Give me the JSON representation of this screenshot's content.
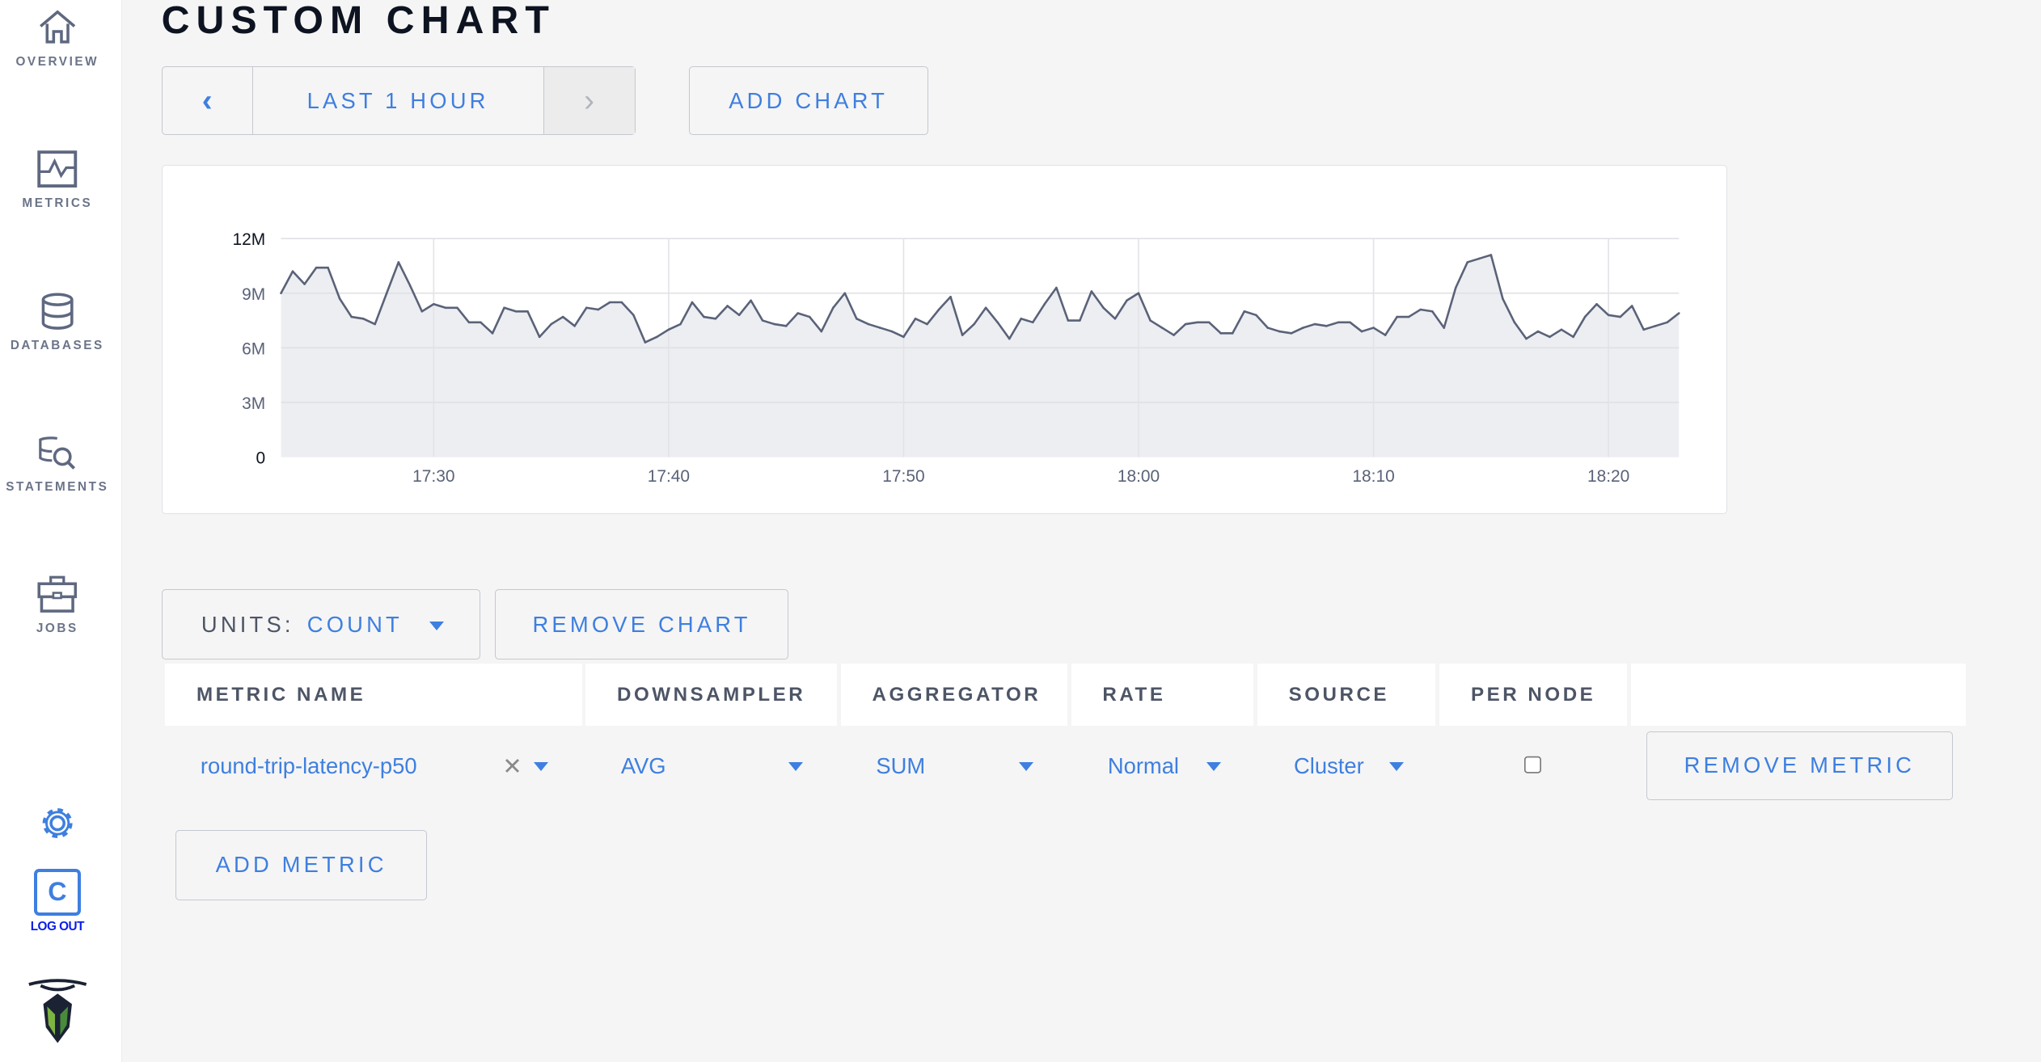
{
  "sidebar": {
    "items": [
      {
        "label": "OVERVIEW",
        "icon": "home-icon"
      },
      {
        "label": "METRICS",
        "icon": "metrics-icon"
      },
      {
        "label": "DATABASES",
        "icon": "database-icon"
      },
      {
        "label": "STATEMENTS",
        "icon": "statements-icon"
      },
      {
        "label": "JOBS",
        "icon": "jobs-icon"
      }
    ],
    "settings_icon": "gear-icon",
    "user_initial": "C",
    "logout_label": "LOG OUT"
  },
  "header": {
    "title": "CUSTOM CHART"
  },
  "time_range": {
    "label": "LAST 1 HOUR",
    "prev": "‹",
    "next": "›"
  },
  "add_chart_label": "ADD CHART",
  "units": {
    "label": "UNITS:",
    "value": "COUNT"
  },
  "remove_chart_label": "REMOVE CHART",
  "table": {
    "headers": [
      "METRIC NAME",
      "DOWNSAMPLER",
      "AGGREGATOR",
      "RATE",
      "SOURCE",
      "PER NODE"
    ],
    "rows": [
      {
        "metric": "round-trip-latency-p50",
        "downsampler": "AVG",
        "aggregator": "SUM",
        "rate": "Normal",
        "source": "Cluster",
        "per_node": false,
        "remove_label": "REMOVE METRIC"
      }
    ]
  },
  "add_metric_label": "ADD METRIC",
  "colors": {
    "accent": "#3e7fe0",
    "line": "#5a6278",
    "area": "#edeef2"
  },
  "chart_data": {
    "type": "area",
    "ylim": [
      0,
      12000000
    ],
    "y_ticks": [
      "0",
      "3M",
      "6M",
      "9M",
      "12M"
    ],
    "y_tick_values": [
      0,
      3,
      6,
      9,
      12
    ],
    "x_ticks": [
      "17:30",
      "17:40",
      "17:50",
      "18:00",
      "18:10",
      "18:20"
    ],
    "xlim": [
      "17:23:30",
      "18:23:00"
    ],
    "grid": true,
    "y_unit": "M",
    "x": [
      "17:23:30",
      "17:24:00",
      "17:24:30",
      "17:25:00",
      "17:25:30",
      "17:26:00",
      "17:26:30",
      "17:27:00",
      "17:27:30",
      "17:28:00",
      "17:28:30",
      "17:29:00",
      "17:29:30",
      "17:30:00",
      "17:30:30",
      "17:31:00",
      "17:31:30",
      "17:32:00",
      "17:32:30",
      "17:33:00",
      "17:33:30",
      "17:34:00",
      "17:34:30",
      "17:35:00",
      "17:35:30",
      "17:36:00",
      "17:36:30",
      "17:37:00",
      "17:37:30",
      "17:38:00",
      "17:38:30",
      "17:39:00",
      "17:39:30",
      "17:40:00",
      "17:40:30",
      "17:41:00",
      "17:41:30",
      "17:42:00",
      "17:42:30",
      "17:43:00",
      "17:43:30",
      "17:44:00",
      "17:44:30",
      "17:45:00",
      "17:45:30",
      "17:46:00",
      "17:46:30",
      "17:47:00",
      "17:47:30",
      "17:48:00",
      "17:48:30",
      "17:49:00",
      "17:49:30",
      "17:50:00",
      "17:50:30",
      "17:51:00",
      "17:51:30",
      "17:52:00",
      "17:52:30",
      "17:53:00",
      "17:53:30",
      "17:54:00",
      "17:54:30",
      "17:55:00",
      "17:55:30",
      "17:56:00",
      "17:56:30",
      "17:57:00",
      "17:57:30",
      "17:58:00",
      "17:58:30",
      "17:59:00",
      "17:59:30",
      "18:00:00",
      "18:00:30",
      "18:01:00",
      "18:01:30",
      "18:02:00",
      "18:02:30",
      "18:03:00",
      "18:03:30",
      "18:04:00",
      "18:04:30",
      "18:05:00",
      "18:05:30",
      "18:06:00",
      "18:06:30",
      "18:07:00",
      "18:07:30",
      "18:08:00",
      "18:08:30",
      "18:09:00",
      "18:09:30",
      "18:10:00",
      "18:10:30",
      "18:11:00",
      "18:11:30",
      "18:12:00",
      "18:12:30",
      "18:13:00",
      "18:13:30",
      "18:14:00",
      "18:14:30",
      "18:15:00",
      "18:15:30",
      "18:16:00",
      "18:16:30",
      "18:17:00",
      "18:17:30",
      "18:18:00",
      "18:18:30",
      "18:19:00",
      "18:19:30",
      "18:20:00",
      "18:20:30",
      "18:21:00",
      "18:21:30",
      "18:22:00",
      "18:22:30",
      "18:23:00"
    ],
    "values_millions": [
      9.0,
      10.2,
      9.5,
      10.4,
      10.4,
      8.7,
      7.7,
      7.6,
      7.3,
      9.0,
      10.7,
      9.4,
      8.0,
      8.4,
      8.2,
      8.2,
      7.4,
      7.4,
      6.8,
      8.2,
      8.0,
      8.0,
      6.6,
      7.3,
      7.7,
      7.2,
      8.2,
      8.1,
      8.5,
      8.5,
      7.8,
      6.3,
      6.6,
      7.0,
      7.3,
      8.5,
      7.7,
      7.6,
      8.3,
      7.8,
      8.6,
      7.5,
      7.3,
      7.2,
      7.9,
      7.7,
      6.9,
      8.2,
      9.0,
      7.6,
      7.3,
      7.1,
      6.9,
      6.6,
      7.6,
      7.3,
      8.1,
      8.8,
      6.7,
      7.3,
      8.2,
      7.4,
      6.5,
      7.6,
      7.4,
      8.4,
      9.3,
      7.5,
      7.5,
      9.1,
      8.2,
      7.6,
      8.6,
      9.0,
      7.5,
      7.1,
      6.7,
      7.3,
      7.4,
      7.4,
      6.8,
      6.8,
      8.0,
      7.8,
      7.1,
      6.9,
      6.8,
      7.1,
      7.3,
      7.2,
      7.4,
      7.4,
      6.9,
      7.1,
      6.7,
      7.7,
      7.7,
      8.1,
      8.0,
      7.1,
      9.3,
      10.7,
      10.9,
      11.1,
      8.7,
      7.4,
      6.5,
      6.9,
      6.6,
      7.0,
      6.6,
      7.7,
      8.4,
      7.8,
      7.7,
      8.3,
      7.0,
      7.2,
      7.4,
      7.9
    ]
  }
}
